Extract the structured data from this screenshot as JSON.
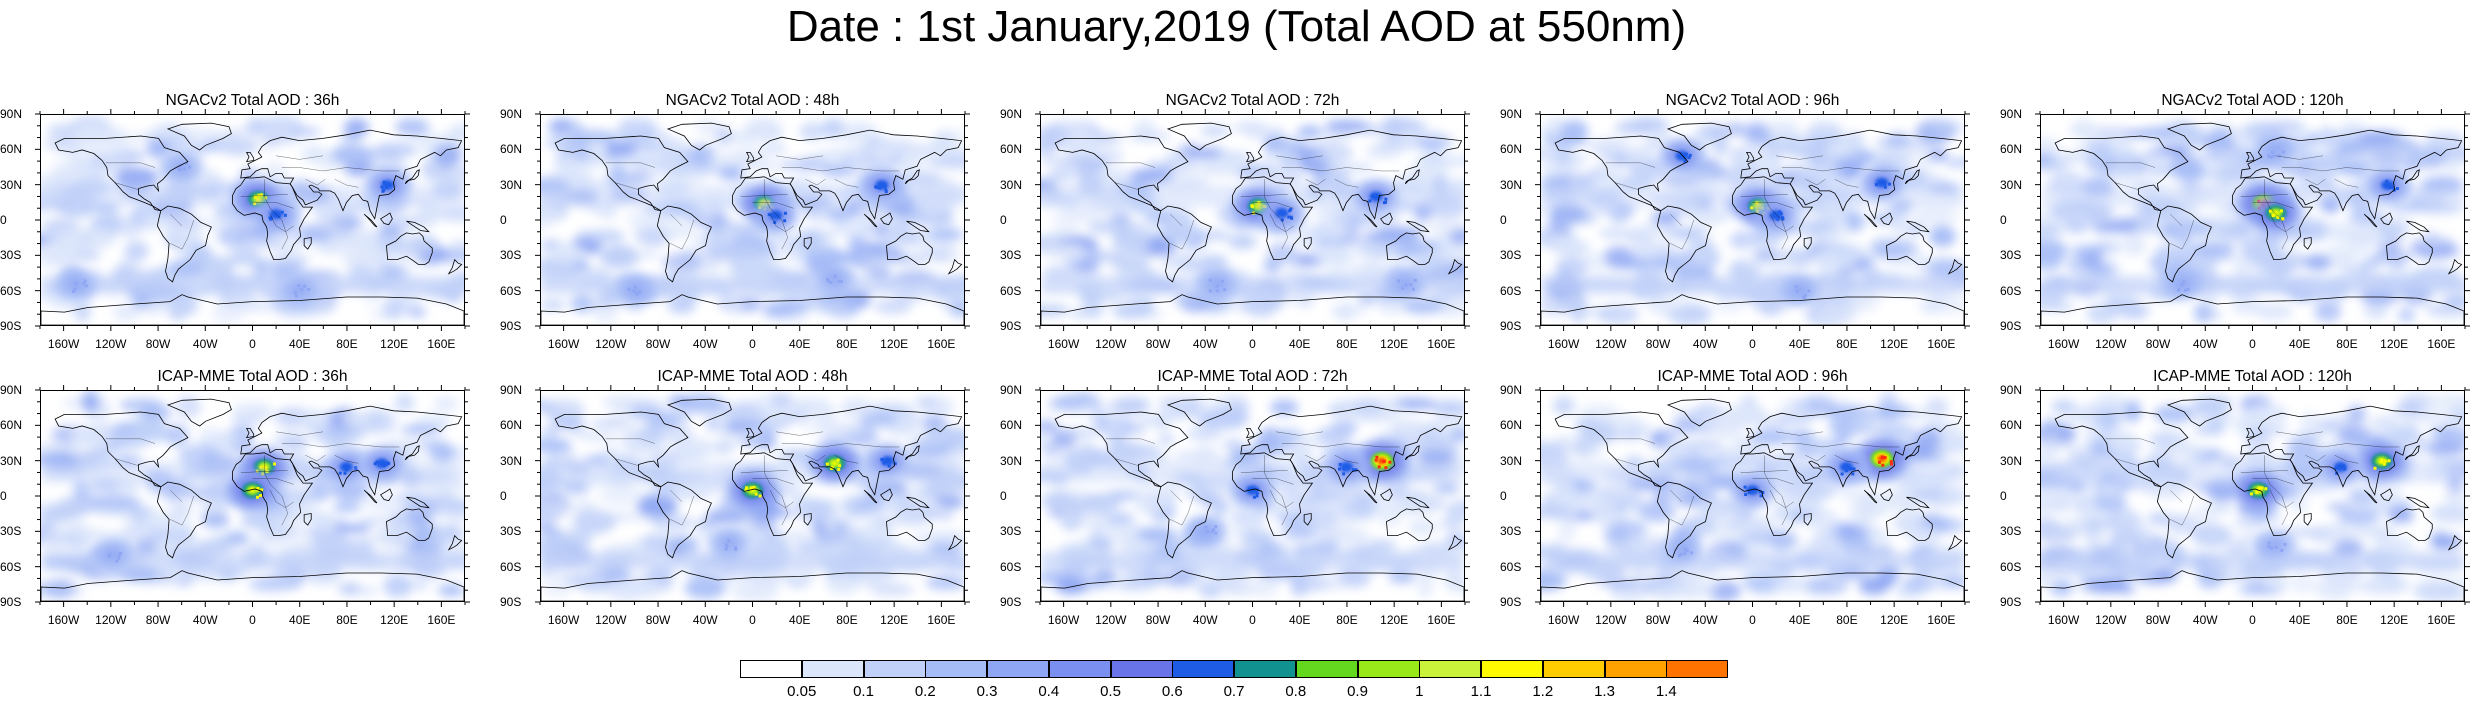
{
  "title": "Date : 1st January,2019 (Total AOD at 550nm)",
  "lat_ticks": [
    "90N",
    "60N",
    "30N",
    "0",
    "30S",
    "60S",
    "90S"
  ],
  "lon_ticks": [
    "160W",
    "120W",
    "80W",
    "40W",
    "0",
    "40E",
    "80E",
    "120E",
    "160E"
  ],
  "panels": [
    {
      "title": "NGACv2 Total AOD : 36h"
    },
    {
      "title": "NGACv2 Total AOD : 48h"
    },
    {
      "title": "NGACv2 Total AOD : 72h"
    },
    {
      "title": "NGACv2 Total AOD : 96h"
    },
    {
      "title": "NGACv2 Total AOD : 120h"
    },
    {
      "title": "ICAP-MME Total AOD : 36h"
    },
    {
      "title": "ICAP-MME Total AOD : 48h"
    },
    {
      "title": "ICAP-MME Total AOD : 72h"
    },
    {
      "title": "ICAP-MME Total AOD : 96h"
    },
    {
      "title": "ICAP-MME Total AOD : 120h"
    }
  ],
  "colorbar": {
    "labels": [
      "0.05",
      "0.1",
      "0.2",
      "0.3",
      "0.4",
      "0.5",
      "0.6",
      "0.7",
      "0.8",
      "0.9",
      "1",
      "1.1",
      "1.2",
      "1.3",
      "1.4"
    ],
    "colors": [
      "#ffffff",
      "#dce6fb",
      "#c0d0f8",
      "#a6bcf7",
      "#8ea6f3",
      "#7b8ff0",
      "#6a74e9",
      "#1f5ce6",
      "#11918f",
      "#64d81f",
      "#98e81a",
      "#cbf23a",
      "#fffa00",
      "#ffcc00",
      "#ffa200",
      "#ff7400",
      "#ff2a10"
    ]
  }
}
